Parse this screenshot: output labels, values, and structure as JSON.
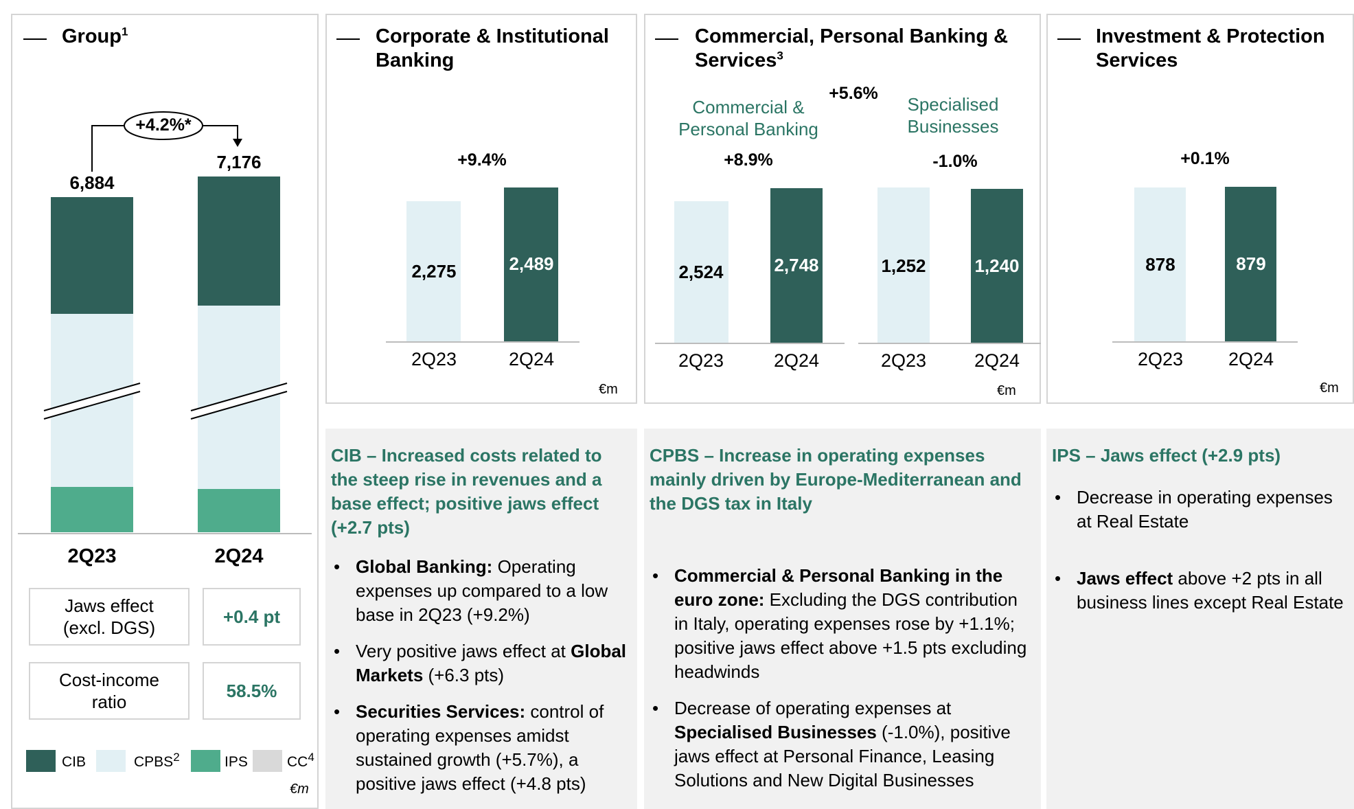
{
  "unit": "€m",
  "group": {
    "title": "Group",
    "title_sup": "1",
    "growth": "+4.2%*",
    "bars": [
      {
        "label": "2Q23",
        "total": "6,884",
        "total_value": 6884
      },
      {
        "label": "2Q24",
        "total": "7,176",
        "total_value": 7176
      }
    ],
    "kpis": [
      {
        "label": "Jaws effect (excl. DGS)",
        "value": "+0.4 pt"
      },
      {
        "label": "Cost-income ratio",
        "value": "58.5%"
      }
    ],
    "legend": [
      {
        "name": "CIB",
        "sup": "",
        "color": "#2f6059"
      },
      {
        "name": "CPBS",
        "sup": "2",
        "color": "#e2f0f4"
      },
      {
        "name": "IPS",
        "sup": "",
        "color": "#4fac8c"
      },
      {
        "name": "CC",
        "sup": "4",
        "color": "#d9d9d9"
      }
    ]
  },
  "cib": {
    "title": "Corporate & Institutional Banking",
    "growth": "+9.4%",
    "bars": [
      {
        "label": "2Q23",
        "value": "2,275",
        "v": 2275
      },
      {
        "label": "2Q24",
        "value": "2,489",
        "v": 2489
      }
    ]
  },
  "cpbs": {
    "title": "Commercial, Personal Banking & Services",
    "title_sup": "3",
    "growth": "+5.6%",
    "cpb": {
      "label": "Commercial & Personal Banking",
      "growth": "+8.9%",
      "bars": [
        {
          "label": "2Q23",
          "value": "2,524",
          "v": 2524
        },
        {
          "label": "2Q24",
          "value": "2,748",
          "v": 2748
        }
      ]
    },
    "sb": {
      "label": "Specialised Businesses",
      "growth": "-1.0%",
      "bars": [
        {
          "label": "2Q23",
          "value": "1,252",
          "v": 1252
        },
        {
          "label": "2Q24",
          "value": "1,240",
          "v": 1240
        }
      ]
    }
  },
  "ips": {
    "title": "Investment & Protection Services",
    "growth": "+0.1%",
    "bars": [
      {
        "label": "2Q23",
        "value": "878",
        "v": 878
      },
      {
        "label": "2Q24",
        "value": "879",
        "v": 879
      }
    ]
  },
  "chart_data": [
    {
      "type": "bar",
      "title": "Group",
      "categories": [
        "2Q23",
        "2Q24"
      ],
      "values": [
        6884,
        7176
      ],
      "stack_series": [
        "CIB",
        "CPBS",
        "IPS",
        "CC"
      ],
      "annotation": "+4.2%*",
      "unit": "€m"
    },
    {
      "type": "bar",
      "title": "Corporate & Institutional Banking",
      "categories": [
        "2Q23",
        "2Q24"
      ],
      "values": [
        2275,
        2489
      ],
      "annotation": "+9.4%",
      "unit": "€m"
    },
    {
      "type": "bar",
      "title": "Commercial & Personal Banking",
      "categories": [
        "2Q23",
        "2Q24"
      ],
      "values": [
        2524,
        2748
      ],
      "annotation": "+8.9%",
      "unit": "€m"
    },
    {
      "type": "bar",
      "title": "Specialised Businesses",
      "categories": [
        "2Q23",
        "2Q24"
      ],
      "values": [
        1252,
        1240
      ],
      "annotation": "-1.0%",
      "unit": "€m"
    },
    {
      "type": "bar",
      "title": "Investment & Protection Services",
      "categories": [
        "2Q23",
        "2Q24"
      ],
      "values": [
        878,
        879
      ],
      "annotation": "+0.1%",
      "unit": "€m"
    }
  ],
  "commentary": {
    "cib": {
      "title": "CIB – Increased costs related to the steep rise in revenues and a base effect; positive jaws effect (+2.7 pts)",
      "bullets": [
        {
          "bold": "Global Banking:",
          "text": " Operating expenses up compared to a low base in 2Q23 (+9.2%)"
        },
        {
          "pre": "Very positive jaws effect at ",
          "bold": "Global Markets",
          "text": " (+6.3 pts)"
        },
        {
          "bold": "Securities Services:",
          "text": " control of operating expenses amidst sustained growth (+5.7%), a positive jaws effect (+4.8 pts)"
        }
      ]
    },
    "cpbs": {
      "title": "CPBS – Increase in operating expenses mainly driven by Europe-Mediterranean and the DGS tax in Italy",
      "bullets": [
        {
          "bold": "Commercial & Personal Banking in the euro zone:",
          "text": " Excluding the DGS contribution in Italy, operating expenses rose by +1.1%; positive jaws effect above +1.5 pts excluding headwinds"
        },
        {
          "pre": "Decrease of operating expenses at ",
          "bold": "Specialised Businesses",
          "text": " (-1.0%), positive jaws effect at Personal Finance, Leasing Solutions and New Digital Businesses"
        }
      ]
    },
    "ips": {
      "title": "IPS – Jaws effect (+2.9 pts)",
      "bullets": [
        {
          "text": "Decrease in operating expenses at Real Estate"
        },
        {
          "bold": "Jaws effect",
          "text": " above +2 pts in all business lines except Real Estate"
        }
      ]
    }
  }
}
